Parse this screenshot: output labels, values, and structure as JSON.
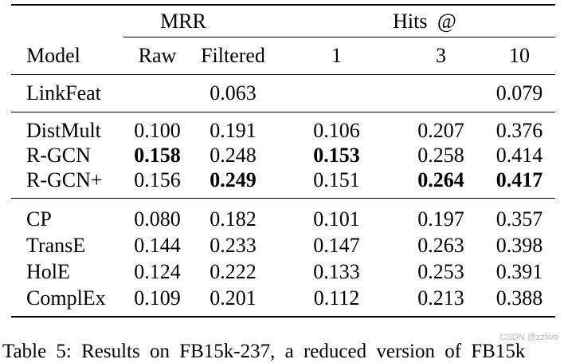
{
  "table": {
    "groups": [
      {
        "label": "MRR"
      },
      {
        "label": "Hits @"
      }
    ],
    "columns": [
      "Model",
      "Raw",
      "Filtered",
      "1",
      "3",
      "10"
    ],
    "sections": [
      {
        "rows": [
          {
            "model": "LinkFeat",
            "values": [
              "",
              "0.063",
              "",
              "",
              "0.079"
            ]
          }
        ]
      },
      {
        "rows": [
          {
            "model": "DistMult",
            "values": [
              "0.100",
              "0.191",
              "0.106",
              "0.207",
              "0.376"
            ]
          },
          {
            "model": "R-GCN",
            "values": [
              "0.158",
              "0.248",
              "0.153",
              "0.258",
              "0.414"
            ]
          },
          {
            "model": "R-GCN+",
            "values": [
              "0.156",
              "0.249",
              "0.151",
              "0.264",
              "0.417"
            ]
          }
        ]
      },
      {
        "rows": [
          {
            "model": "CP",
            "values": [
              "0.080",
              "0.182",
              "0.101",
              "0.197",
              "0.357"
            ]
          },
          {
            "model": "TransE",
            "values": [
              "0.144",
              "0.233",
              "0.147",
              "0.263",
              "0.398"
            ]
          },
          {
            "model": "HolE",
            "values": [
              "0.124",
              "0.222",
              "0.133",
              "0.253",
              "0.391"
            ]
          },
          {
            "model": "ComplEx",
            "values": [
              "0.109",
              "0.201",
              "0.112",
              "0.213",
              "0.388"
            ]
          }
        ]
      }
    ],
    "bold_cells": [
      "table.sections.1.rows.1.values.0",
      "table.sections.1.rows.1.values.2",
      "table.sections.1.rows.2.values.1",
      "table.sections.1.rows.2.values.3",
      "table.sections.1.rows.2.values.4"
    ]
  },
  "caption": "Table 5: Results on FB15k-237, a reduced version of FB15k",
  "watermark": "CSDN @zzfive"
}
